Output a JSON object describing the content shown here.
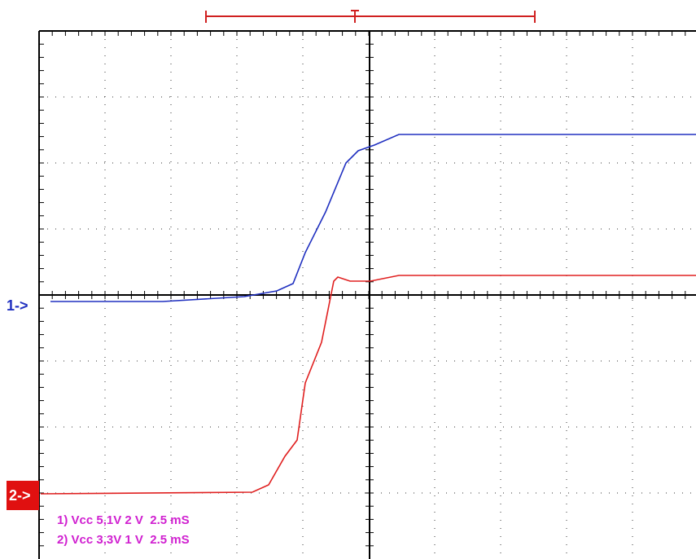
{
  "channels": [
    {
      "marker": "1->",
      "legend": "1) Vcc 5,1V 2 V  2.5 mS"
    },
    {
      "marker": "2->",
      "legend": "2) Vcc 3,3V 1 V  2.5 mS"
    }
  ]
}
